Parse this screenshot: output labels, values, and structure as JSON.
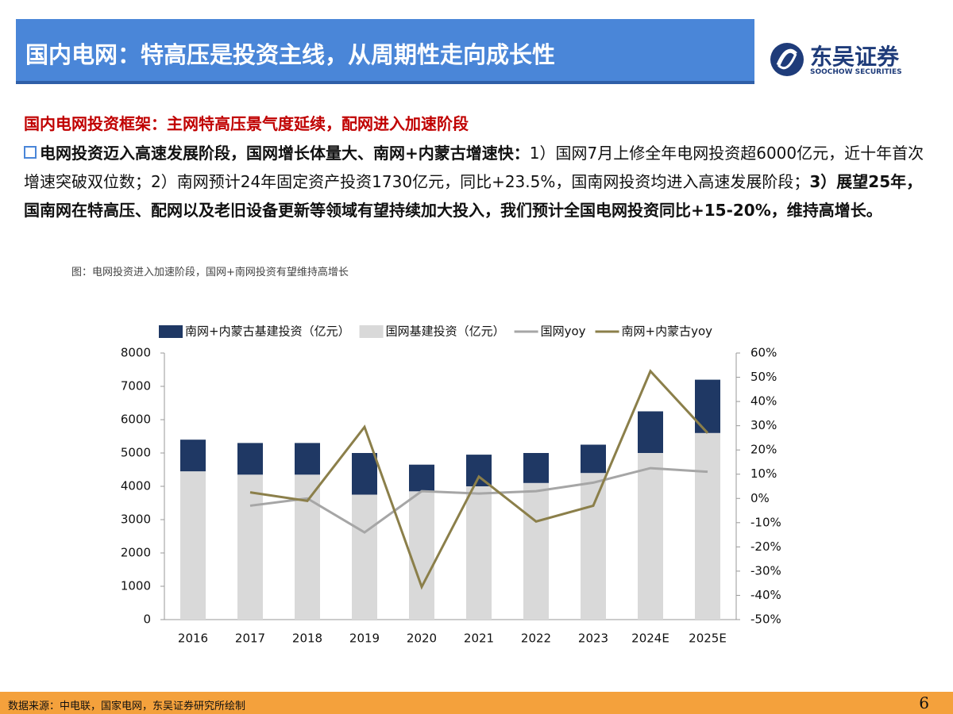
{
  "header": {
    "title": "国内电网：特高压是投资主线，从周期性走向成长性",
    "logo_name": "东吴证券",
    "logo_sub": "SOOCHOW SECURITIES"
  },
  "section_title": "国内电网投资框架：主网特高压景气度延续，配网进入加速阶段",
  "paragraph": [
    {
      "text": "电网投资迈入高速发展阶段，国网增长体量大、南网+内蒙古增速快：",
      "bold": true
    },
    {
      "text": "1）国网7月上修全年电网投资超6000亿元，近十年首次增速突破双位数；2）南网预计24年固定资产投资1730亿元，同比+23.5%，国南网投资均进入高速发展阶段；",
      "bold": false
    },
    {
      "text": "3）展望25年，国南网在特高压、配网以及老旧设备更新等领域有望持续加大投入，我们预计全国电网投资同比+15-20%，维持高增长。",
      "bold": true
    }
  ],
  "caption": "图：电网投资进入加速阶段，国网+南网投资有望维持高增长",
  "chart_data": {
    "type": "bar",
    "stacked": true,
    "categories": [
      "2016",
      "2017",
      "2018",
      "2019",
      "2020",
      "2021",
      "2022",
      "2023",
      "2024E",
      "2025E"
    ],
    "series": [
      {
        "name": "南网+内蒙古基建投资（亿元）",
        "color": "#1f3864",
        "values": [
          950,
          950,
          950,
          1250,
          800,
          950,
          900,
          850,
          1250,
          1600
        ],
        "stack_order": 1
      },
      {
        "name": "国网基建投资（亿元）",
        "color": "#d9d9d9",
        "values": [
          4450,
          4350,
          4350,
          3750,
          3850,
          4000,
          4100,
          4400,
          5000,
          5600
        ],
        "stack_order": 0
      },
      {
        "name": "国网yoy",
        "type": "line",
        "axis": "y2",
        "color": "#a6a6a6",
        "values": [
          null,
          -3,
          0,
          -14,
          3,
          2,
          3,
          6.5,
          12.5,
          11
        ]
      },
      {
        "name": "南网+内蒙古yoy",
        "type": "line",
        "axis": "y2",
        "color": "#8b7f4a",
        "values": [
          null,
          2.5,
          -1,
          29.5,
          -36.5,
          9,
          -9.5,
          -3,
          52.5,
          27
        ]
      }
    ],
    "ylim": [
      0,
      8000
    ],
    "yticks": [
      0,
      1000,
      2000,
      3000,
      4000,
      5000,
      6000,
      7000,
      8000
    ],
    "y2lim": [
      -50,
      60
    ],
    "y2ticks": [
      {
        "value": -50,
        "label": "-50%"
      },
      {
        "value": -40,
        "label": "-40%"
      },
      {
        "value": -30,
        "label": "-30%"
      },
      {
        "value": -20,
        "label": "-20%"
      },
      {
        "value": -10,
        "label": "-10%"
      },
      {
        "value": 0,
        "label": "0%"
      },
      {
        "value": 10,
        "label": "10%"
      },
      {
        "value": 20,
        "label": "20%"
      },
      {
        "value": 30,
        "label": "30%"
      },
      {
        "value": 40,
        "label": "40%"
      },
      {
        "value": 50,
        "label": "50%"
      },
      {
        "value": 60,
        "label": "60%"
      }
    ],
    "legend": "top",
    "grid": false
  },
  "footer": {
    "source": "数据来源：中电联，国家电网，东吴证券研究所绘制",
    "page": "6"
  }
}
